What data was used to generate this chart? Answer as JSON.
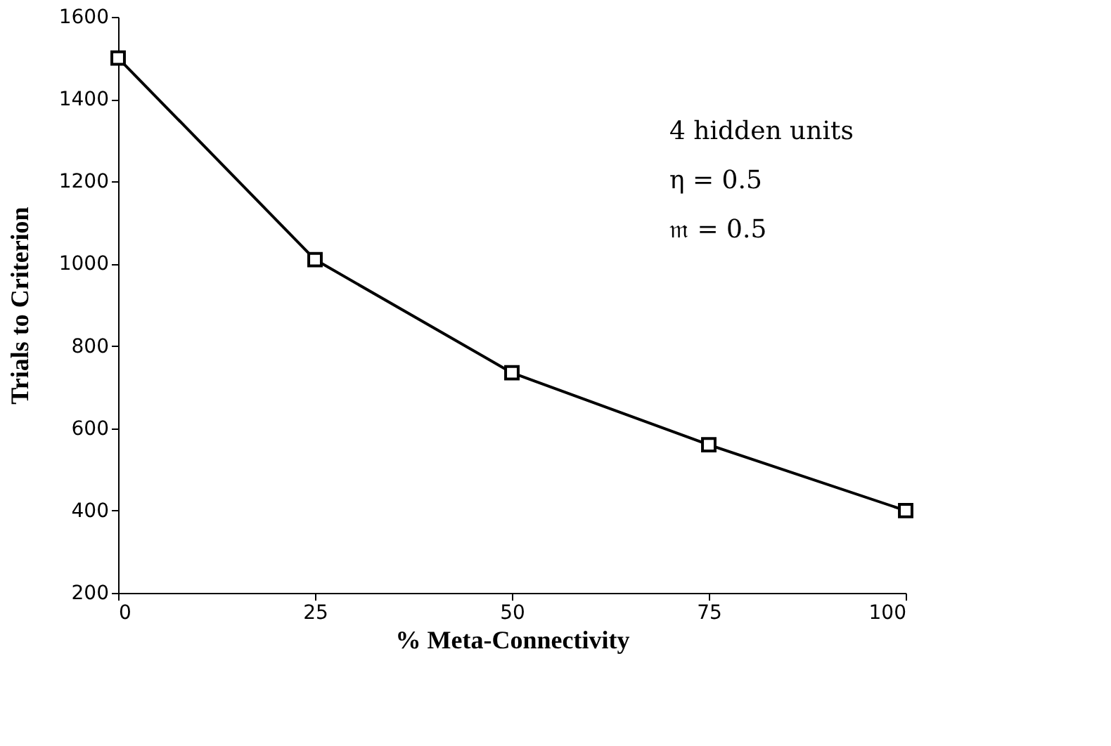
{
  "chart_data": {
    "type": "line",
    "xlabel": "% Meta-Connectivity",
    "ylabel": "Trials to Criterion",
    "x": [
      0,
      25,
      50,
      75,
      100
    ],
    "series": [
      {
        "color": "#000000",
        "values": [
          1500,
          1010,
          735,
          560,
          400
        ]
      }
    ],
    "xlim": [
      0,
      100
    ],
    "xticks": [
      0,
      25,
      50,
      75,
      100
    ],
    "ylim": [
      200,
      1600
    ],
    "yticks": [
      200,
      400,
      600,
      800,
      1000,
      1200,
      1400,
      1600
    ],
    "annotations": [
      "4 hidden units",
      "η = 0.5",
      "𝔪 = 0.5"
    ],
    "marker": "square",
    "line_style": "solid"
  }
}
